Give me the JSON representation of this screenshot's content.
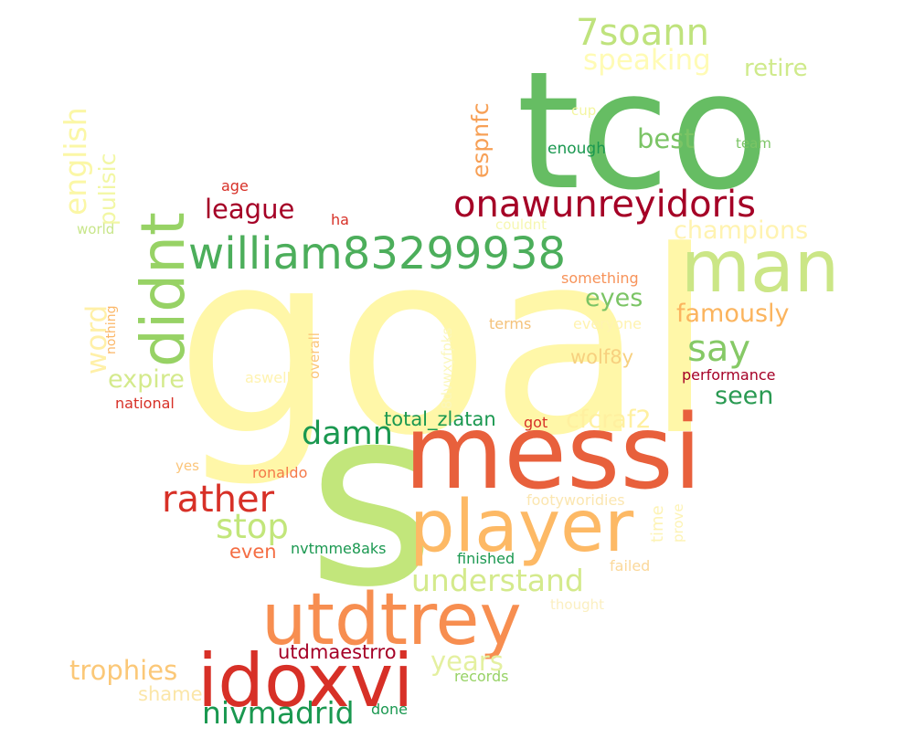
{
  "palette": {
    "dark_red": "#a50026",
    "red": "#d73027",
    "orange_red": "#f46d43",
    "orange": "#fdae61",
    "light_orange": "#fee08b",
    "pale_yellow": "#fff7a8",
    "light_green": "#d9ef8b",
    "yellow_green": "#a6d96a",
    "green": "#66bd63",
    "dark_green": "#1a9850",
    "deep_green": "#006837"
  },
  "words": [
    {
      "text": "goal",
      "color": "#fff7a8"
    },
    {
      "text": "tco",
      "color": "#66bd63"
    },
    {
      "text": "s",
      "color": "#c2e67b"
    },
    {
      "text": "messi",
      "color": "#e8603c"
    },
    {
      "text": "man",
      "color": "#cbe686"
    },
    {
      "text": "player",
      "color": "#fdb965"
    },
    {
      "text": "utdtrey",
      "color": "#f78e50"
    },
    {
      "text": "idoxvi",
      "color": "#d73027"
    },
    {
      "text": "didnt",
      "color": "#97d265"
    },
    {
      "text": "william83299938",
      "color": "#4cae5b"
    },
    {
      "text": "onawunreyidoris",
      "color": "#a50026"
    },
    {
      "text": "7soann",
      "color": "#bfe37d"
    },
    {
      "text": "speaking",
      "color": "#fffbb5"
    },
    {
      "text": "retire",
      "color": "#cfea8b"
    },
    {
      "text": "english",
      "color": "#fbf7a6"
    },
    {
      "text": "pulisic",
      "color": "#f2f7a4"
    },
    {
      "text": "espnfc",
      "color": "#f7a056"
    },
    {
      "text": "best",
      "color": "#7bc465"
    },
    {
      "text": "cup",
      "color": "#f4f6a0"
    },
    {
      "text": "enough",
      "color": "#1a9850"
    },
    {
      "text": "team",
      "color": "#7bc465"
    },
    {
      "text": "age",
      "color": "#d73027"
    },
    {
      "text": "league",
      "color": "#a50026"
    },
    {
      "text": "ha",
      "color": "#d73027"
    },
    {
      "text": "world",
      "color": "#c8e68a"
    },
    {
      "text": "couldnt",
      "color": "#f6f7b0"
    },
    {
      "text": "champions",
      "color": "#fff3b0"
    },
    {
      "text": "something",
      "color": "#f7935a"
    },
    {
      "text": "eyes",
      "color": "#7bc465"
    },
    {
      "text": "famously",
      "color": "#fbb45e"
    },
    {
      "text": "word",
      "color": "#fff0a8"
    },
    {
      "text": "nothing",
      "color": "#fbb768"
    },
    {
      "text": "overall",
      "color": "#fbc57a"
    },
    {
      "text": "8dvwxyfpks",
      "color": "#fbf7bb"
    },
    {
      "text": "terms",
      "color": "#f4c27a"
    },
    {
      "text": "everyone",
      "color": "#fff3b0"
    },
    {
      "text": "say",
      "color": "#86c966"
    },
    {
      "text": "expire",
      "color": "#d4ea8c"
    },
    {
      "text": "aswell",
      "color": "#fff3b0"
    },
    {
      "text": "wolf8y",
      "color": "#f7d07f"
    },
    {
      "text": "performance",
      "color": "#a50026"
    },
    {
      "text": "national",
      "color": "#d73027"
    },
    {
      "text": "seen",
      "color": "#2a9a52"
    },
    {
      "text": "damn",
      "color": "#1a9850"
    },
    {
      "text": "total_zlatan",
      "color": "#1a9850"
    },
    {
      "text": "got",
      "color": "#d73027"
    },
    {
      "text": "cfcraf2",
      "color": "#fff0a0"
    },
    {
      "text": "yes",
      "color": "#fbc57a"
    },
    {
      "text": "ronaldo",
      "color": "#f47a4a"
    },
    {
      "text": "rather",
      "color": "#d73027"
    },
    {
      "text": "footyworidies",
      "color": "#fbe6b0"
    },
    {
      "text": "prove",
      "color": "#fdf3b5"
    },
    {
      "text": "time",
      "color": "#fdf3b5"
    },
    {
      "text": "stop",
      "color": "#c2e67b"
    },
    {
      "text": "even",
      "color": "#f46d43"
    },
    {
      "text": "nvtmme8aks",
      "color": "#1a9850"
    },
    {
      "text": "finished",
      "color": "#1a9850"
    },
    {
      "text": "failed",
      "color": "#fbd89a"
    },
    {
      "text": "understand",
      "color": "#d4ea8c"
    },
    {
      "text": "thought",
      "color": "#fbefc0"
    },
    {
      "text": "utdmaestrro",
      "color": "#a50026"
    },
    {
      "text": "trophies",
      "color": "#fbc878"
    },
    {
      "text": "years",
      "color": "#e4f0a0"
    },
    {
      "text": "records",
      "color": "#97d265"
    },
    {
      "text": "shame",
      "color": "#fbe6a8"
    },
    {
      "text": "nivmadrid",
      "color": "#1a9850"
    },
    {
      "text": "done",
      "color": "#1a9850"
    }
  ]
}
